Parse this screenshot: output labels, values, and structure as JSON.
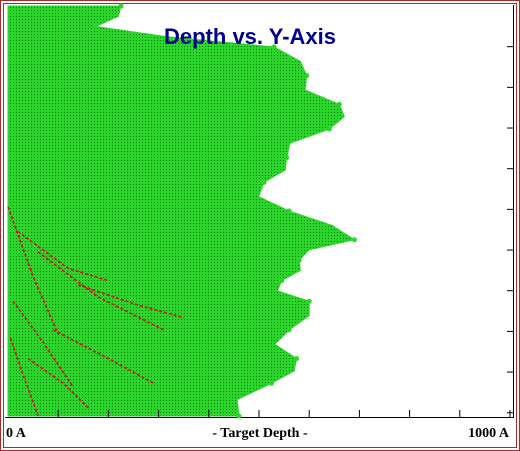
{
  "colors": {
    "background": "#ffffff",
    "frame": "#a52a2a",
    "damage": "#2ad62a",
    "damage_dark": "#0a7a0a",
    "defects": "#d21010",
    "title": "#00008b",
    "axis": "#000000"
  },
  "chart_data": {
    "type": "area",
    "title": "Depth vs. Y-Axis",
    "xlabel": "- Target Depth -",
    "x_min_label": "0 A",
    "x_max_label": "1000 A",
    "xlim": [
      0,
      1000
    ],
    "x_ticks": [
      0,
      100,
      200,
      300,
      400,
      500,
      600,
      700,
      800,
      900,
      1000
    ],
    "y_tick_count": 10,
    "grid": false,
    "series": [
      {
        "profile": [
          {
            "y": 0.0,
            "depth": 225
          },
          {
            "y": 0.05,
            "depth": 175
          },
          {
            "y": 0.1,
            "depth": 530
          },
          {
            "y": 0.17,
            "depth": 595
          },
          {
            "y": 0.24,
            "depth": 660
          },
          {
            "y": 0.3,
            "depth": 640
          },
          {
            "y": 0.37,
            "depth": 555
          },
          {
            "y": 0.43,
            "depth": 510
          },
          {
            "y": 0.5,
            "depth": 560
          },
          {
            "y": 0.57,
            "depth": 690
          },
          {
            "y": 0.62,
            "depth": 580
          },
          {
            "y": 0.67,
            "depth": 545
          },
          {
            "y": 0.72,
            "depth": 600
          },
          {
            "y": 0.79,
            "depth": 560
          },
          {
            "y": 0.86,
            "depth": 575
          },
          {
            "y": 0.92,
            "depth": 525
          },
          {
            "y": 1.0,
            "depth": 460
          }
        ]
      }
    ],
    "defect_tracks": [
      [
        [
          0,
          0.49
        ],
        [
          50,
          0.66
        ],
        [
          100,
          0.8
        ]
      ],
      [
        [
          20,
          0.55
        ],
        [
          120,
          0.64
        ],
        [
          200,
          0.67
        ]
      ],
      [
        [
          60,
          0.6
        ],
        [
          180,
          0.71
        ],
        [
          310,
          0.79
        ]
      ],
      [
        [
          140,
          0.68
        ],
        [
          260,
          0.73
        ],
        [
          350,
          0.76
        ]
      ],
      [
        [
          10,
          0.72
        ],
        [
          70,
          0.82
        ],
        [
          130,
          0.93
        ]
      ],
      [
        [
          90,
          0.79
        ],
        [
          200,
          0.86
        ],
        [
          290,
          0.92
        ]
      ],
      [
        [
          40,
          0.86
        ],
        [
          110,
          0.92
        ],
        [
          160,
          0.98
        ]
      ],
      [
        [
          5,
          0.81
        ],
        [
          30,
          0.9
        ],
        [
          60,
          1.0
        ]
      ]
    ]
  }
}
